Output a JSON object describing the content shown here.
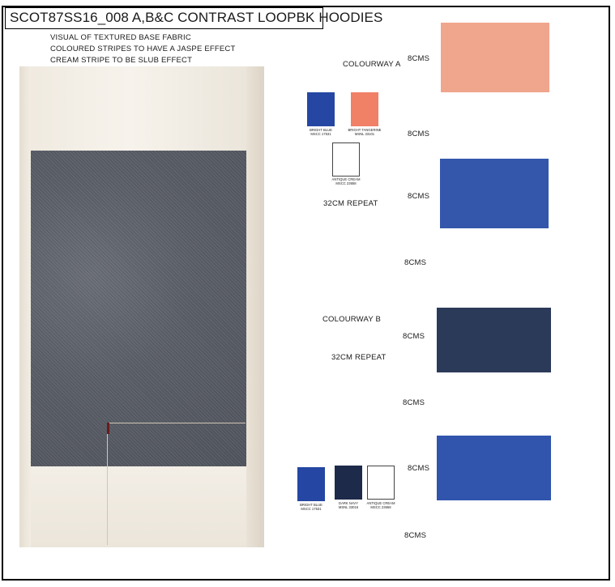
{
  "title": "SCOT87SS16_008 A,B&C CONTRAST LOOPBK HOODIES",
  "notes": [
    "VISUAL OF TEXTURED BASE FABRIC",
    "COLOURED STRIPES TO HAVE A JASPE EFFECT",
    "CREAM STRIPE TO BE SLUB EFFECT"
  ],
  "colourway_a": {
    "heading": "COLOURWAY A",
    "repeat": "32CM REPEAT",
    "chips": [
      {
        "name_line": "BRIGHT BLUE",
        "code_line": "MSCC 17531",
        "color": "#2547a3"
      },
      {
        "name_line": "BRIGHT TANGERINE",
        "code_line": "MSNL 33101",
        "color": "#f08066"
      },
      {
        "name_line": "ANTIQUE CREAM",
        "code_line": "MSCC 23658",
        "color": "#ffffff"
      }
    ]
  },
  "colourway_b": {
    "heading": "COLOURWAY B",
    "repeat": "32CM REPEAT",
    "chips": [
      {
        "name_line": "BRIGHT BLUE",
        "code_line": "MSCC 17531",
        "color": "#2547a3"
      },
      {
        "name_line": "DARK NAVY",
        "code_line": "MSNL 33016",
        "color": "#1d2a4a"
      },
      {
        "name_line": "ANTIQUE CREAM",
        "code_line": "MSCC 23658",
        "color": "#ffffff"
      }
    ]
  },
  "stripe_labels": [
    "8CMS",
    "8CMS",
    "8CMS",
    "8CMS",
    "8CMS",
    "8CMS",
    "8CMS",
    "8CMS"
  ],
  "swatch_colors": [
    "#f0a58d",
    "#3457ab",
    "#2c3a59",
    "#3155ad"
  ]
}
